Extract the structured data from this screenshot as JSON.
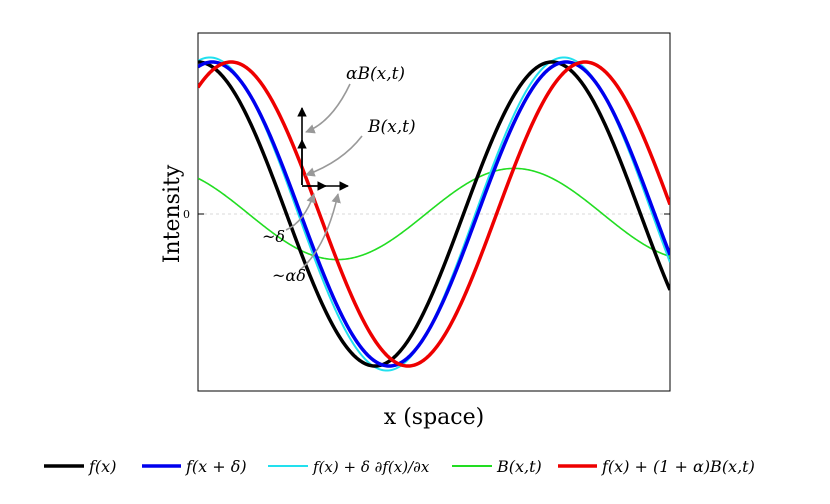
{
  "chart_data": {
    "type": "line",
    "xlabel": "x (space)",
    "ylabel": "Intensity",
    "xlim": [
      0,
      1
    ],
    "ylim": [
      -1.2,
      1.2
    ],
    "yticks": [
      {
        "value": 0,
        "label": "0"
      }
    ],
    "grid": false,
    "legend_position": "bottom",
    "series": [
      {
        "name": "f(x)",
        "color": "#000000",
        "amplitude": 1.0,
        "period": 0.75,
        "phase": 0.0
      },
      {
        "name": "f(x + δ)",
        "color": "#0000ee",
        "amplitude": 1.0,
        "period": 0.75,
        "phase": 0.03
      },
      {
        "name": "f(x) + δ ∂f(x)/∂x",
        "color": "#22e0ee",
        "amplitude": 1.03,
        "period": 0.75,
        "phase": 0.025
      },
      {
        "name": "B(x,t)",
        "color": "#22dd22",
        "amplitude": 0.3,
        "period": 0.75,
        "phase": -0.08
      },
      {
        "name": "f(x) + (1 + α)B(x,t)",
        "color": "#ee0000",
        "amplitude": 1.0,
        "period": 0.75,
        "phase": 0.07
      }
    ],
    "annotations": [
      {
        "id": "aB",
        "text": "αB(x,t)"
      },
      {
        "id": "B",
        "text": "B(x,t)"
      },
      {
        "id": "d",
        "text": "~δ"
      },
      {
        "id": "ad",
        "text": "~αδ"
      }
    ]
  }
}
